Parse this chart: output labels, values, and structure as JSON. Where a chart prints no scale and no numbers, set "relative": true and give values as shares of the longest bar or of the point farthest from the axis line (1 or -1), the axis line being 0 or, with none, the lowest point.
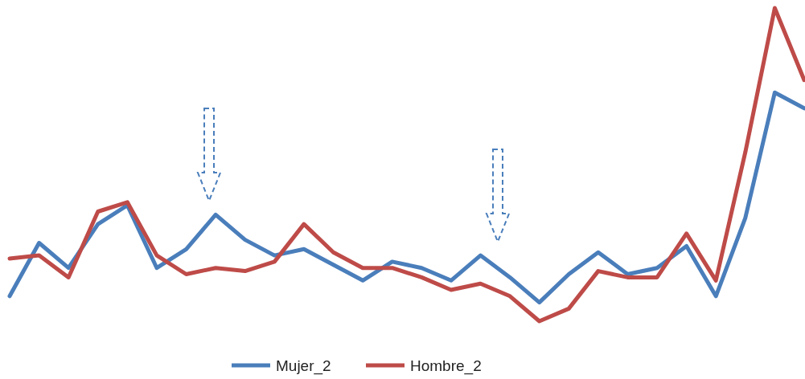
{
  "chart_data": {
    "type": "line",
    "relative": true,
    "legend": "bottom",
    "categories": [
      null,
      null,
      null,
      null,
      null,
      null,
      null,
      null,
      null,
      null,
      null,
      null,
      null,
      null,
      null,
      null,
      null,
      null,
      null,
      null,
      null,
      null,
      null,
      null,
      null,
      null,
      null,
      null
    ],
    "series": [
      {
        "name": "Mujer_2",
        "color": "#4a7ebb",
        "values": [
          0.08,
          0.25,
          0.17,
          0.31,
          0.37,
          0.17,
          0.23,
          0.34,
          0.26,
          0.21,
          0.23,
          0.18,
          0.13,
          0.19,
          0.17,
          0.13,
          0.21,
          0.14,
          0.06,
          0.15,
          0.22,
          0.15,
          0.17,
          0.24,
          0.08,
          0.33,
          0.73,
          0.68
        ]
      },
      {
        "name": "Hombre_2",
        "color": "#be4b48",
        "values": [
          0.2,
          0.21,
          0.14,
          0.35,
          0.38,
          0.21,
          0.15,
          0.17,
          0.16,
          0.19,
          0.31,
          0.22,
          0.17,
          0.17,
          0.14,
          0.1,
          0.12,
          0.08,
          0,
          0.04,
          0.16,
          0.14,
          0.14,
          0.28,
          0.13,
          0.54,
          1,
          0.77
        ]
      }
    ]
  }
}
